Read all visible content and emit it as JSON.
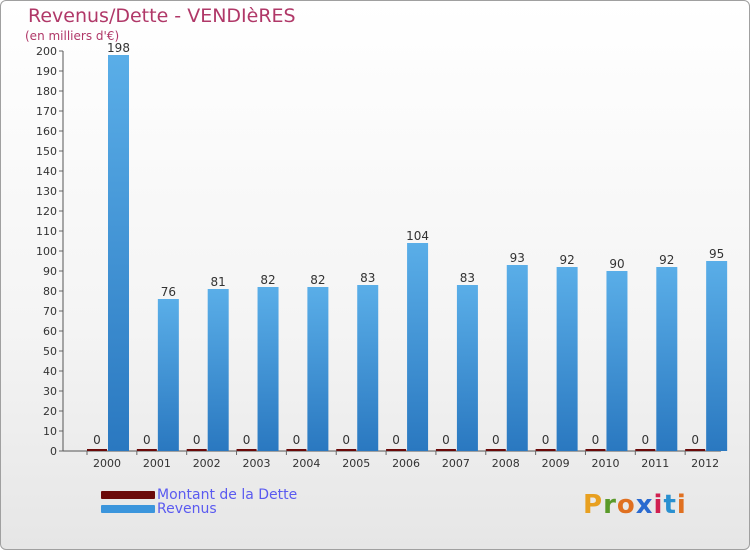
{
  "title": "Revenus/Dette - VENDIèRES",
  "subtitle": "(en milliers d'€)",
  "colors": {
    "dette": "#6b0a0a",
    "revenus": "#3b95dc",
    "title": "#b03868",
    "legend_text": "#5a5af0"
  },
  "legend": [
    {
      "label": "Montant de la Dette",
      "color": "#6b0a0a"
    },
    {
      "label": "Revenus",
      "color": "#3b95dc"
    }
  ],
  "logo": {
    "letters": [
      "P",
      "r",
      "o",
      "x",
      "i",
      "t",
      "i"
    ],
    "colors": [
      "#e8a020",
      "#5a9a2a",
      "#e07020",
      "#2a6ad0",
      "#d02050",
      "#2a90d0",
      "#e07020"
    ]
  },
  "chart_data": {
    "type": "bar",
    "categories": [
      "2000",
      "2001",
      "2002",
      "2003",
      "2004",
      "2005",
      "2006",
      "2007",
      "2008",
      "2009",
      "2010",
      "2011",
      "2012"
    ],
    "series": [
      {
        "name": "Montant de la Dette",
        "values": [
          0,
          0,
          0,
          0,
          0,
          0,
          0,
          0,
          0,
          0,
          0,
          0,
          0
        ]
      },
      {
        "name": "Revenus",
        "values": [
          198,
          76,
          81,
          82,
          82,
          83,
          104,
          83,
          93,
          92,
          90,
          92,
          95
        ]
      }
    ],
    "ylim": [
      0,
      200
    ],
    "yticks": [
      0,
      10,
      20,
      30,
      40,
      50,
      60,
      70,
      80,
      90,
      100,
      110,
      120,
      130,
      140,
      150,
      160,
      170,
      180,
      190,
      200
    ],
    "grid": false,
    "legend_position": "bottom-left"
  }
}
